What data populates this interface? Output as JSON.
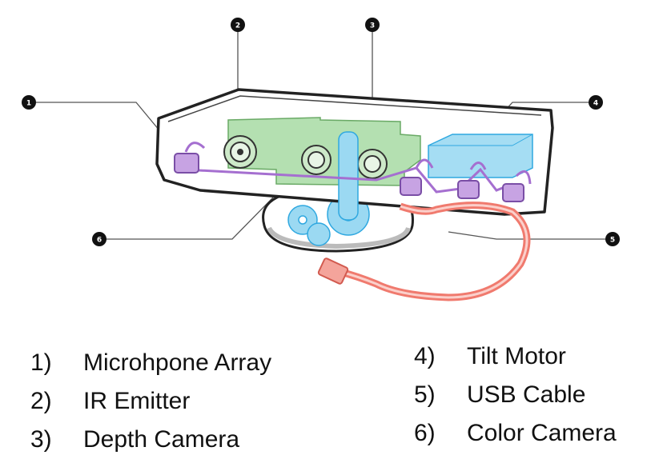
{
  "callouts": [
    {
      "id": "1",
      "label": "1"
    },
    {
      "id": "2",
      "label": "2"
    },
    {
      "id": "3",
      "label": "3"
    },
    {
      "id": "4",
      "label": "4"
    },
    {
      "id": "5",
      "label": "5"
    },
    {
      "id": "6",
      "label": "6"
    }
  ],
  "legend": {
    "left": [
      {
        "num": "1)",
        "text": "Microhpone Array"
      },
      {
        "num": "2)",
        "text": "IR Emitter"
      },
      {
        "num": "3)",
        "text": "Depth Camera"
      }
    ],
    "right": [
      {
        "num": "4)",
        "text": "Tilt Motor"
      },
      {
        "num": "5)",
        "text": "USB Cable"
      },
      {
        "num": "6)",
        "text": "Color Camera"
      }
    ]
  },
  "colors": {
    "outline": "#222222",
    "circuit_board": "#9fd69b",
    "motor": "#7fd0f0",
    "microphones": "#b98ad6",
    "cable": "#f07a6e",
    "gears": "#7fd0f0"
  }
}
